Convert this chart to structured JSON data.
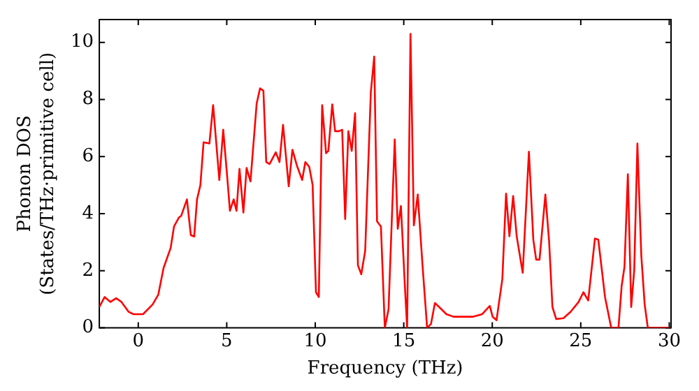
{
  "chart_data": {
    "type": "line",
    "xlabel": "Frequency (THz)",
    "ylabel": "Phonon DOS\n(States/THz·primitive cell)",
    "xlim": [
      -2.2,
      30.1
    ],
    "xticks": [
      0,
      5,
      10,
      15,
      20,
      25,
      30
    ],
    "ylim": [
      0,
      10.8
    ],
    "yticks": [
      0,
      2,
      4,
      6,
      8,
      10
    ],
    "grid": false,
    "legend": false,
    "marker": "none",
    "line_style": "solid",
    "series": [
      {
        "color": "#ff0000",
        "x": [
          -2.2,
          -1.9,
          -1.57,
          -1.25,
          -0.95,
          -0.54,
          -0.27,
          0.27,
          0.81,
          1.13,
          1.43,
          1.83,
          2.02,
          2.29,
          2.43,
          2.75,
          2.97,
          3.16,
          3.32,
          3.51,
          3.69,
          4.02,
          4.23,
          4.58,
          4.8,
          5.04,
          5.18,
          5.39,
          5.55,
          5.72,
          5.94,
          6.12,
          6.34,
          6.69,
          6.88,
          7.07,
          7.23,
          7.42,
          7.77,
          7.98,
          8.18,
          8.5,
          8.71,
          8.96,
          9.26,
          9.44,
          9.66,
          9.85,
          10.04,
          10.2,
          10.39,
          10.61,
          10.74,
          10.96,
          11.12,
          11.34,
          11.52,
          11.69,
          11.87,
          12.06,
          12.25,
          12.41,
          12.6,
          12.82,
          13.14,
          13.33,
          13.49,
          13.71,
          13.93,
          14.14,
          14.49,
          14.66,
          14.84,
          15.06,
          15.19,
          15.38,
          15.57,
          15.79,
          16.06,
          16.32,
          16.54,
          16.76,
          17.0,
          17.41,
          17.81,
          18.89,
          19.43,
          19.86,
          20.02,
          20.24,
          20.57,
          20.78,
          20.97,
          21.18,
          21.38,
          21.72,
          22.07,
          22.32,
          22.48,
          22.67,
          23.0,
          23.21,
          23.4,
          23.61,
          24.02,
          24.42,
          24.88,
          25.15,
          25.42,
          25.8,
          25.99,
          26.37,
          26.72,
          27.13,
          27.31,
          27.47,
          27.66,
          27.85,
          28.02,
          28.2,
          28.42,
          28.61,
          28.79,
          30.0
        ],
        "values": [
          0.73,
          1.08,
          0.91,
          1.04,
          0.91,
          0.56,
          0.48,
          0.48,
          0.82,
          1.16,
          2.1,
          2.8,
          3.55,
          3.86,
          3.93,
          4.5,
          3.25,
          3.2,
          4.5,
          5.0,
          6.5,
          6.46,
          7.8,
          5.18,
          6.94,
          5.18,
          4.1,
          4.5,
          4.1,
          5.57,
          4.04,
          5.6,
          5.13,
          7.86,
          8.39,
          8.31,
          5.81,
          5.74,
          6.15,
          5.81,
          7.11,
          4.96,
          6.24,
          5.69,
          5.18,
          5.81,
          5.64,
          5.01,
          1.25,
          1.08,
          7.8,
          6.12,
          6.2,
          7.83,
          6.89,
          6.89,
          6.94,
          3.81,
          6.89,
          6.2,
          7.52,
          2.19,
          1.88,
          2.7,
          8.26,
          9.5,
          3.73,
          3.55,
          0,
          0.65,
          6.6,
          3.47,
          4.27,
          1.5,
          0,
          10.3,
          3.59,
          4.67,
          2.19,
          0,
          0.14,
          0.87,
          0.73,
          0.48,
          0.39,
          0.39,
          0.48,
          0.77,
          0.39,
          0.27,
          1.71,
          4.7,
          3.21,
          4.62,
          3.21,
          1.93,
          6.17,
          3.08,
          2.39,
          2.39,
          4.67,
          3.04,
          0.73,
          0.31,
          0.34,
          0.56,
          0.91,
          1.25,
          0.96,
          3.13,
          3.09,
          1.08,
          0,
          0,
          1.47,
          2.14,
          5.38,
          0.73,
          2.02,
          6.46,
          2.53,
          0.82,
          0,
          0
        ]
      }
    ]
  }
}
